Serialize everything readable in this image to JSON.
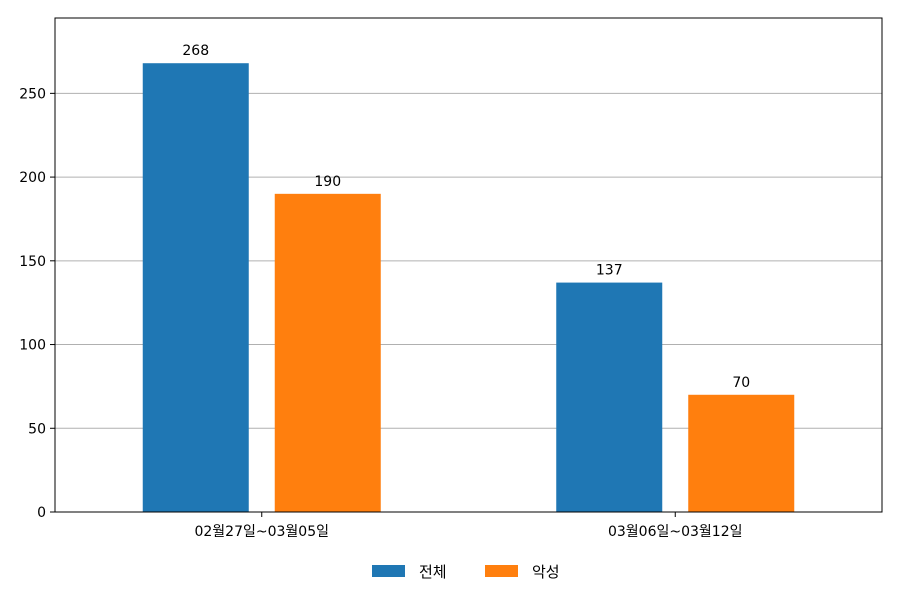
{
  "chart_data": {
    "type": "bar",
    "categories": [
      "02월27일~03월05일",
      "03월06일~03월12일"
    ],
    "series": [
      {
        "name": "전체",
        "values": [
          268,
          137
        ],
        "color": "#1f77b4"
      },
      {
        "name": "악성",
        "values": [
          190,
          70
        ],
        "color": "#ff7f0e"
      }
    ],
    "yticks": [
      0,
      50,
      100,
      150,
      200,
      250
    ],
    "ylim": [
      0,
      295
    ],
    "grid": true,
    "grid_axis": "y",
    "legend_position": "bottom-center",
    "data_labels": true
  }
}
